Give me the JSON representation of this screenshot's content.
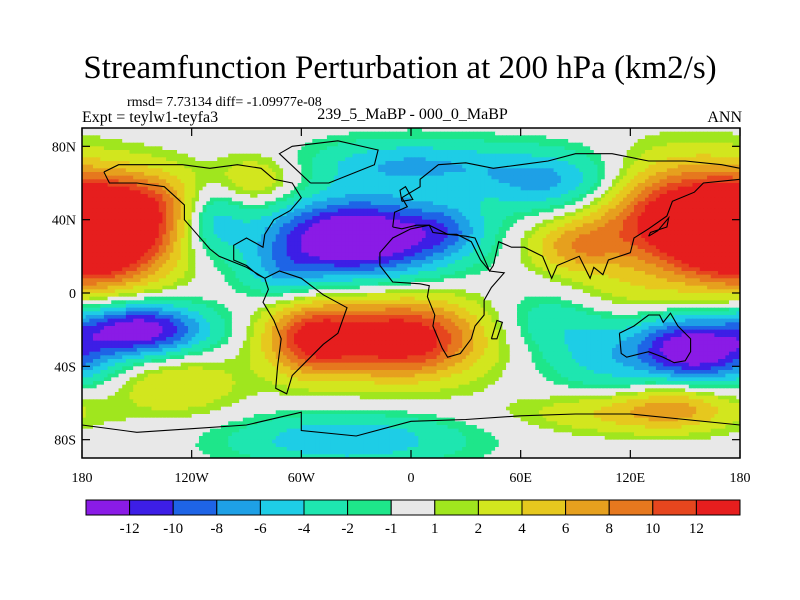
{
  "header": {
    "title": "Streamfunction Perturbation at 200 hPa (km2/s)",
    "stats": "rmsd= 7.73134 diff= -1.09977e-08",
    "experiment": "Expt = teylw1-teyfa3",
    "cases": "239_5_MaBP - 000_0_MaBP",
    "season": "ANN"
  },
  "chart_data": {
    "type": "heatmap",
    "title": "Streamfunction Perturbation at 200 hPa (km2/s)",
    "xlim": [
      -180,
      180
    ],
    "ylim": [
      -90,
      90
    ],
    "x_ticks": [
      {
        "value": -180,
        "label": "180"
      },
      {
        "value": -120,
        "label": "120W"
      },
      {
        "value": -60,
        "label": "60W"
      },
      {
        "value": 0,
        "label": "0"
      },
      {
        "value": 60,
        "label": "60E"
      },
      {
        "value": 120,
        "label": "120E"
      },
      {
        "value": 180,
        "label": "180"
      }
    ],
    "y_ticks": [
      {
        "value": 80,
        "label": "80N"
      },
      {
        "value": 40,
        "label": "40N"
      },
      {
        "value": 0,
        "label": "0"
      },
      {
        "value": -40,
        "label": "40S"
      },
      {
        "value": -80,
        "label": "80S"
      }
    ],
    "colorbar": {
      "colors": [
        "#8a1be6",
        "#3d1ee6",
        "#1e64e6",
        "#1ea0e6",
        "#1ecde6",
        "#1ee6b0",
        "#1ee68a",
        "#e8e8e8",
        "#a0e61e",
        "#d2e61e",
        "#e6c81e",
        "#e6a01e",
        "#e6781e",
        "#e6461e",
        "#e61e1e"
      ],
      "labels": [
        "-12",
        "-10",
        "-8",
        "-6",
        "-4",
        "-2",
        "-1",
        "1",
        "2",
        "4",
        "6",
        "8",
        "10",
        "12"
      ],
      "levels": [
        -12,
        -10,
        -8,
        -6,
        -4,
        -2,
        -1,
        1,
        2,
        4,
        6,
        8,
        10,
        12
      ]
    },
    "field_features": [
      {
        "lon": -172,
        "lat": 25,
        "amp": 15,
        "slon": 28,
        "slat": 16
      },
      {
        "lon": -150,
        "lat": 48,
        "amp": 9,
        "slon": 30,
        "slat": 14
      },
      {
        "lon": -148,
        "lat": -20,
        "amp": -14,
        "slon": 25,
        "slat": 10
      },
      {
        "lon": -185,
        "lat": -35,
        "amp": -6,
        "slon": 20,
        "slat": 12
      },
      {
        "lon": -128,
        "lat": -50,
        "amp": 4,
        "slon": 25,
        "slat": 12
      },
      {
        "lon": -110,
        "lat": 42,
        "amp": -7,
        "slon": 13,
        "slat": 14
      },
      {
        "lon": -85,
        "lat": 62,
        "amp": 4,
        "slon": 18,
        "slat": 10
      },
      {
        "lon": -70,
        "lat": 10,
        "amp": -4,
        "slon": 15,
        "slat": 10
      },
      {
        "lon": -30,
        "lat": 30,
        "amp": -17,
        "slon": 35,
        "slat": 15
      },
      {
        "lon": 20,
        "lat": 35,
        "amp": -4,
        "slon": 15,
        "slat": 10
      },
      {
        "lon": 0,
        "lat": 70,
        "amp": -6,
        "slon": 40,
        "slat": 10
      },
      {
        "lon": -55,
        "lat": -25,
        "amp": 11,
        "slon": 18,
        "slat": 14
      },
      {
        "lon": -5,
        "lat": -25,
        "amp": 15,
        "slon": 30,
        "slat": 15
      },
      {
        "lon": -35,
        "lat": -80,
        "amp": -6,
        "slon": 45,
        "slat": 10
      },
      {
        "lon": 80,
        "lat": 60,
        "amp": -7,
        "slon": 30,
        "slat": 12
      },
      {
        "lon": 90,
        "lat": 25,
        "amp": 6,
        "slon": 18,
        "slat": 10
      },
      {
        "lon": 150,
        "lat": 42,
        "amp": 15,
        "slon": 35,
        "slat": 20
      },
      {
        "lon": 120,
        "lat": 0,
        "amp": 2,
        "slon": 25,
        "slat": 10
      },
      {
        "lon": 75,
        "lat": -15,
        "amp": -3,
        "slon": 20,
        "slat": 12
      },
      {
        "lon": 150,
        "lat": -30,
        "amp": -11,
        "slon": 18,
        "slat": 12
      },
      {
        "lon": 110,
        "lat": -35,
        "amp": -5,
        "slon": 25,
        "slat": 15
      },
      {
        "lon": 120,
        "lat": -65,
        "amp": 5,
        "slon": 40,
        "slat": 8
      },
      {
        "lon": 145,
        "lat": -60,
        "amp": 4,
        "slon": 20,
        "slat": 10
      }
    ]
  }
}
